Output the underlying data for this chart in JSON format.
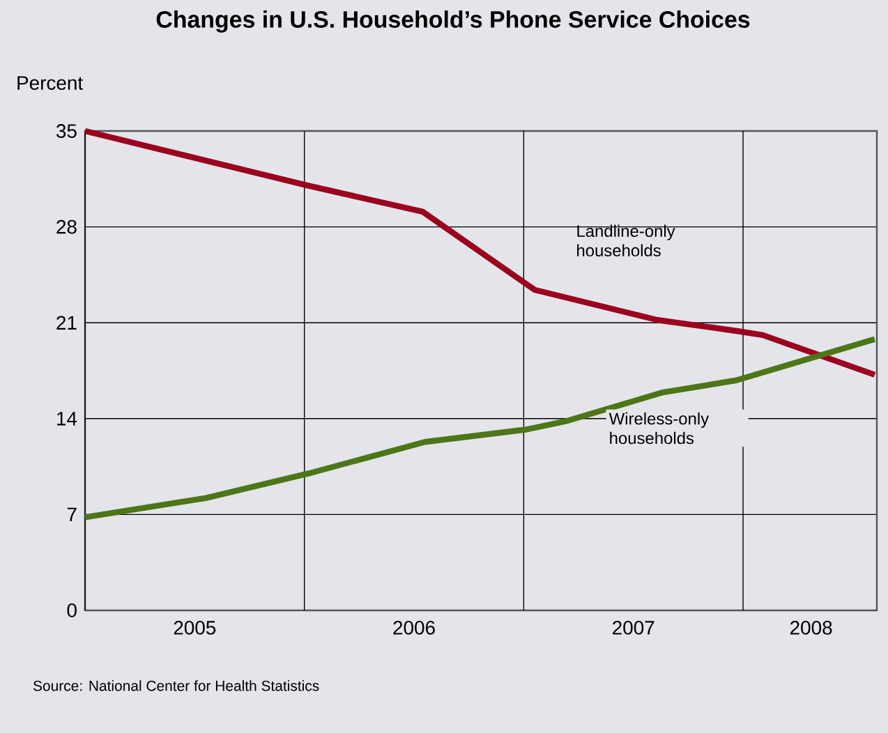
{
  "chart_data": {
    "type": "line",
    "title": "Changes in U.S. Household’s Phone Service Choices",
    "ylabel": "Percent",
    "annotations": [
      "Source: National Center for Health Statistics"
    ],
    "xlim": [
      2005,
      2008.61
    ],
    "ylim": [
      0,
      35
    ],
    "xticks": [
      {
        "value": 2005,
        "label": null
      },
      {
        "value": 2005.5,
        "label": "2005"
      },
      {
        "value": 2006,
        "label": null
      },
      {
        "value": 2006.5,
        "label": "2006"
      },
      {
        "value": 2007,
        "label": null
      },
      {
        "value": 2007.5,
        "label": "2007"
      },
      {
        "value": 2008,
        "label": null
      },
      {
        "value": 2008.31,
        "label": "2008"
      }
    ],
    "yticks": [
      0,
      7,
      14,
      21,
      28,
      35
    ],
    "grid": true,
    "marker": "none",
    "line_style": "solid",
    "series": [
      {
        "name": "Landline-only households",
        "color": "#9b0020",
        "x": [
          2005,
          2006.02,
          2006.54,
          2007.05,
          2007.61,
          2007.97,
          2008.09,
          2008.6
        ],
        "values": [
          35,
          31.0,
          29.1,
          23.4,
          21.2,
          20.4,
          20.1,
          17.2
        ]
      },
      {
        "name": "Wireless-only households",
        "color": "#4e7518",
        "x": [
          2005,
          2005.55,
          2006.02,
          2006.55,
          2007.01,
          2007.19,
          2007.63,
          2007.97,
          2008.6
        ],
        "values": [
          6.8,
          8.2,
          10.0,
          12.3,
          13.2,
          13.8,
          15.9,
          16.8,
          19.8
        ]
      }
    ]
  }
}
